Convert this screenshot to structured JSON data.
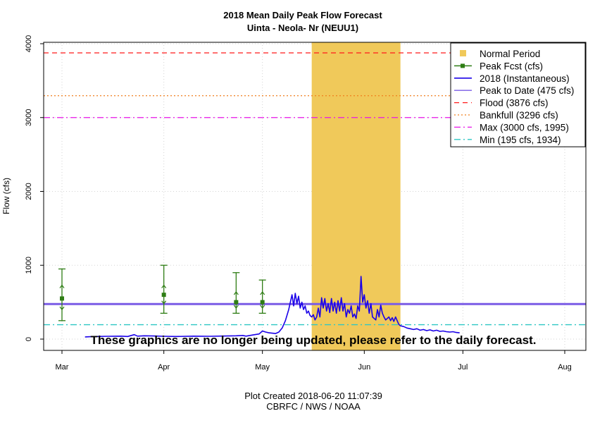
{
  "chart_data": {
    "type": "line",
    "title": "2018 Mean Daily Peak Flow Forecast",
    "subtitle": "Uinta - Neola- Nr (NEUU1)",
    "ylabel": "Flow (cfs)",
    "ylim": [
      -150,
      4010
    ],
    "yticks": [
      0,
      1000,
      2000,
      3000,
      4000
    ],
    "xticks": [
      {
        "label": "Mar",
        "day": 0
      },
      {
        "label": "Apr",
        "day": 31
      },
      {
        "label": "May",
        "day": 61
      },
      {
        "label": "Jun",
        "day": 92
      },
      {
        "label": "Jul",
        "day": 122
      },
      {
        "label": "Aug",
        "day": 153
      }
    ],
    "xlim_days": [
      -5,
      159
    ],
    "grid": true,
    "legend_position": "top-right",
    "normal_period": {
      "label": "Normal Period",
      "start_day": 76,
      "end_day": 103,
      "color": "#f0c95a"
    },
    "peak_forecast": {
      "label": "Peak Fcst (cfs)",
      "color": "#2e7d14",
      "points": [
        {
          "day": 0,
          "value": 550,
          "low": 250,
          "high": 950,
          "inner_low": 400,
          "inner_high": 730
        },
        {
          "day": 31,
          "value": 600,
          "low": 350,
          "high": 1000,
          "inner_low": 480,
          "inner_high": 730
        },
        {
          "day": 53,
          "value": 500,
          "low": 350,
          "high": 900,
          "inner_low": 420,
          "inner_high": 640
        },
        {
          "day": 61,
          "value": 500,
          "low": 350,
          "high": 800,
          "inner_low": 420,
          "inner_high": 640
        }
      ]
    },
    "instantaneous": {
      "label": "2018  (Instantaneous)",
      "color": "#1a00e8",
      "points": [
        [
          7,
          30
        ],
        [
          10,
          35
        ],
        [
          14,
          38
        ],
        [
          18,
          40
        ],
        [
          20,
          35
        ],
        [
          22,
          60
        ],
        [
          23,
          40
        ],
        [
          25,
          45
        ],
        [
          28,
          42
        ],
        [
          31,
          38
        ],
        [
          35,
          35
        ],
        [
          40,
          40
        ],
        [
          45,
          38
        ],
        [
          50,
          42
        ],
        [
          53,
          45
        ],
        [
          55,
          50
        ],
        [
          56,
          40
        ],
        [
          58,
          55
        ],
        [
          60,
          70
        ],
        [
          61,
          110
        ],
        [
          62,
          95
        ],
        [
          63,
          85
        ],
        [
          64,
          80
        ],
        [
          65,
          75
        ],
        [
          66,
          95
        ],
        [
          67,
          150
        ],
        [
          68,
          250
        ],
        [
          69,
          400
        ],
        [
          70,
          600
        ],
        [
          70.5,
          450
        ],
        [
          71,
          620
        ],
        [
          71.5,
          480
        ],
        [
          72,
          580
        ],
        [
          72.5,
          420
        ],
        [
          73,
          500
        ],
        [
          73.5,
          400
        ],
        [
          74,
          450
        ],
        [
          74.5,
          350
        ],
        [
          75,
          380
        ],
        [
          75.5,
          320
        ],
        [
          76,
          300
        ],
        [
          76.5,
          330
        ],
        [
          77,
          260
        ],
        [
          77.5,
          300
        ],
        [
          78,
          420
        ],
        [
          78.5,
          300
        ],
        [
          79,
          560
        ],
        [
          79.5,
          420
        ],
        [
          80,
          550
        ],
        [
          80.5,
          380
        ],
        [
          81,
          480
        ],
        [
          81.5,
          360
        ],
        [
          82,
          550
        ],
        [
          82.5,
          380
        ],
        [
          83,
          500
        ],
        [
          83.5,
          350
        ],
        [
          84,
          520
        ],
        [
          84.5,
          380
        ],
        [
          85,
          560
        ],
        [
          85.5,
          380
        ],
        [
          86,
          480
        ],
        [
          86.5,
          300
        ],
        [
          87,
          400
        ],
        [
          87.5,
          350
        ],
        [
          88,
          450
        ],
        [
          88.5,
          300
        ],
        [
          89,
          340
        ],
        [
          89.5,
          280
        ],
        [
          90,
          450
        ],
        [
          90.5,
          380
        ],
        [
          91,
          850
        ],
        [
          91.5,
          500
        ],
        [
          92,
          600
        ],
        [
          92.5,
          420
        ],
        [
          93,
          520
        ],
        [
          93.5,
          350
        ],
        [
          94,
          480
        ],
        [
          94.5,
          300
        ],
        [
          95,
          280
        ],
        [
          95.5,
          260
        ],
        [
          96,
          400
        ],
        [
          96.5,
          300
        ],
        [
          97,
          460
        ],
        [
          97.5,
          350
        ],
        [
          98,
          300
        ],
        [
          98.5,
          260
        ],
        [
          99,
          280
        ],
        [
          99.5,
          300
        ],
        [
          100,
          250
        ],
        [
          100.5,
          290
        ],
        [
          101,
          240
        ],
        [
          101.5,
          300
        ],
        [
          102,
          250
        ],
        [
          102.5,
          200
        ],
        [
          103,
          180
        ],
        [
          104,
          170
        ],
        [
          105,
          150
        ],
        [
          106,
          140
        ],
        [
          107,
          130
        ],
        [
          108,
          140
        ],
        [
          109,
          120
        ],
        [
          110,
          130
        ],
        [
          111,
          115
        ],
        [
          112,
          125
        ],
        [
          113,
          110
        ],
        [
          114,
          120
        ],
        [
          115,
          105
        ],
        [
          116,
          110
        ],
        [
          117,
          100
        ],
        [
          118,
          95
        ],
        [
          119,
          100
        ],
        [
          120,
          90
        ],
        [
          121,
          85
        ]
      ]
    },
    "reference_lines": [
      {
        "label": "Peak to Date (475 cfs)",
        "value": 475,
        "color": "#7a5ce6",
        "style": "solid-thick"
      },
      {
        "label": "Flood (3876 cfs)",
        "value": 3876,
        "color": "#ff1a1a",
        "style": "dashed"
      },
      {
        "label": "Bankfull (3296 cfs)",
        "value": 3296,
        "color": "#f07f1d",
        "style": "dotted"
      },
      {
        "label": "Max (3000 cfs, 1995)",
        "value": 3000,
        "color": "#e815e8",
        "style": "dashdot"
      },
      {
        "label": "Min (195 cfs, 1934)",
        "value": 195,
        "color": "#2ec7c4",
        "style": "dashdot"
      }
    ],
    "annotation": "These graphics are no longer being updated, please refer to the daily forecast.",
    "footer_created": "Plot Created 2018-06-20 11:07:39",
    "footer_source": "CBRFC / NWS / NOAA"
  }
}
